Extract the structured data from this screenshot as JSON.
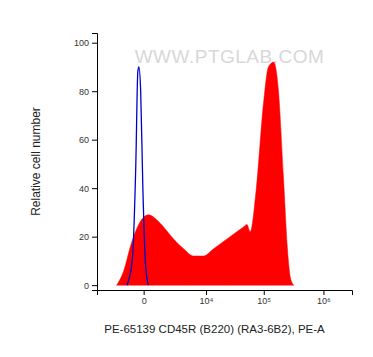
{
  "chart_data": {
    "type": "area",
    "x_label": "PE-65139 CD45R (B220) (RA3-6B2), PE-A",
    "y_label": "Relative cell number",
    "annotations": [
      "WWW.PTGLAB.COM"
    ],
    "log": "x",
    "xlim": [
      -5000,
      3000000
    ],
    "xticks": [
      0,
      {
        "value": 10000,
        "label": "10⁴"
      },
      {
        "value": 100000,
        "label": "10⁵"
      },
      {
        "value": 1000000,
        "label": "10⁶"
      }
    ],
    "ylim": [
      -2,
      104
    ],
    "yticks": [
      0,
      20,
      40,
      60,
      80,
      100
    ],
    "series": [
      {
        "type": "area",
        "color": "#ff0000",
        "x": [
          -1820,
          -1140,
          -660,
          -210,
          0,
          210,
          650,
          1150,
          2160,
          3640,
          5810,
          9000,
          13700,
          20500,
          30600,
          45400,
          52000,
          59000,
          75000,
          99000,
          120000,
          147000,
          177000,
          214000,
          250000,
          281000,
          320000
        ],
        "values": [
          0,
          6,
          16,
          25,
          28,
          29,
          27,
          24,
          19,
          15,
          12,
          12,
          15,
          18,
          21,
          24,
          25,
          22,
          40,
          75,
          90,
          92,
          80,
          45,
          15,
          3,
          0
        ]
      },
      {
        "type": "line",
        "color": "#0000cc",
        "x": [
          -900,
          -550,
          -350,
          -250,
          -200,
          -120,
          -30,
          80,
          200
        ],
        "values": [
          0,
          10,
          50,
          88,
          90,
          80,
          40,
          8,
          0
        ]
      }
    ]
  }
}
